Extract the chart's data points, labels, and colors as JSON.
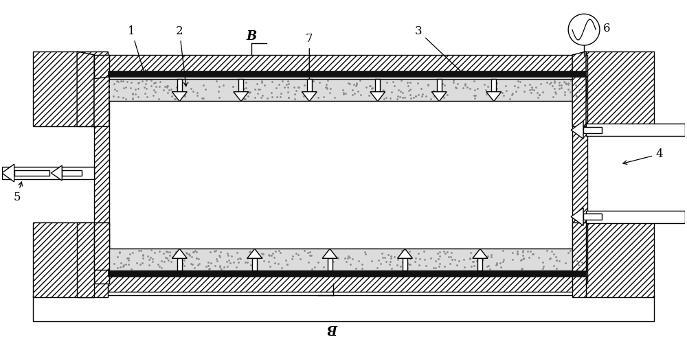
{
  "bg_color": "#ffffff",
  "fig_width": 10.0,
  "fig_height": 5.04,
  "lw": 1.0
}
